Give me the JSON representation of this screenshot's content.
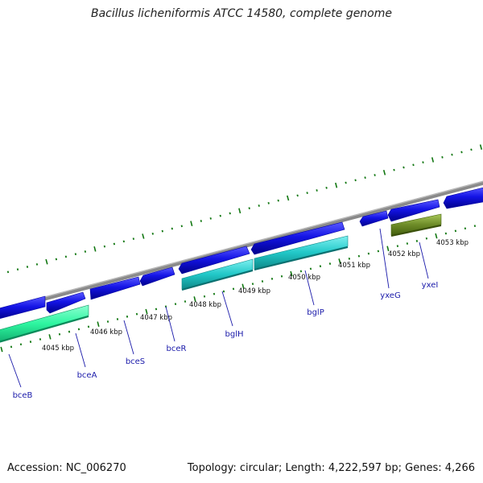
{
  "title": "Bacillus licheniformis ATCC 14580, complete genome",
  "footer": {
    "accession": "Accession: NC_006270",
    "summary": "Topology: circular; Length: 4,222,597 bp; Genes: 4,266"
  },
  "ticks": [
    {
      "label": "4045 kbp"
    },
    {
      "label": "4046 kbp"
    },
    {
      "label": "4047 kbp"
    },
    {
      "label": "4048 kbp"
    },
    {
      "label": "4049 kbp"
    },
    {
      "label": "4050 kbp"
    },
    {
      "label": "4051 kbp"
    },
    {
      "label": "4052 kbp"
    },
    {
      "label": "4053 kbp"
    }
  ],
  "genes": [
    {
      "name": "bceB"
    },
    {
      "name": "bceA"
    },
    {
      "name": "bceS"
    },
    {
      "name": "bceR"
    },
    {
      "name": "bglH"
    },
    {
      "name": "bglP"
    },
    {
      "name": "yxeG"
    },
    {
      "name": "yxeI"
    }
  ],
  "colors": {
    "backbone": "#8a8a8a",
    "cds": "#1414e6",
    "cds_edge": "#0000a0",
    "feature_green": "#2ef5a0",
    "feature_cyan": "#22c8c8",
    "feature_olive": "#6e8c28",
    "tick": "#117711",
    "label": "#1a1aaa"
  }
}
